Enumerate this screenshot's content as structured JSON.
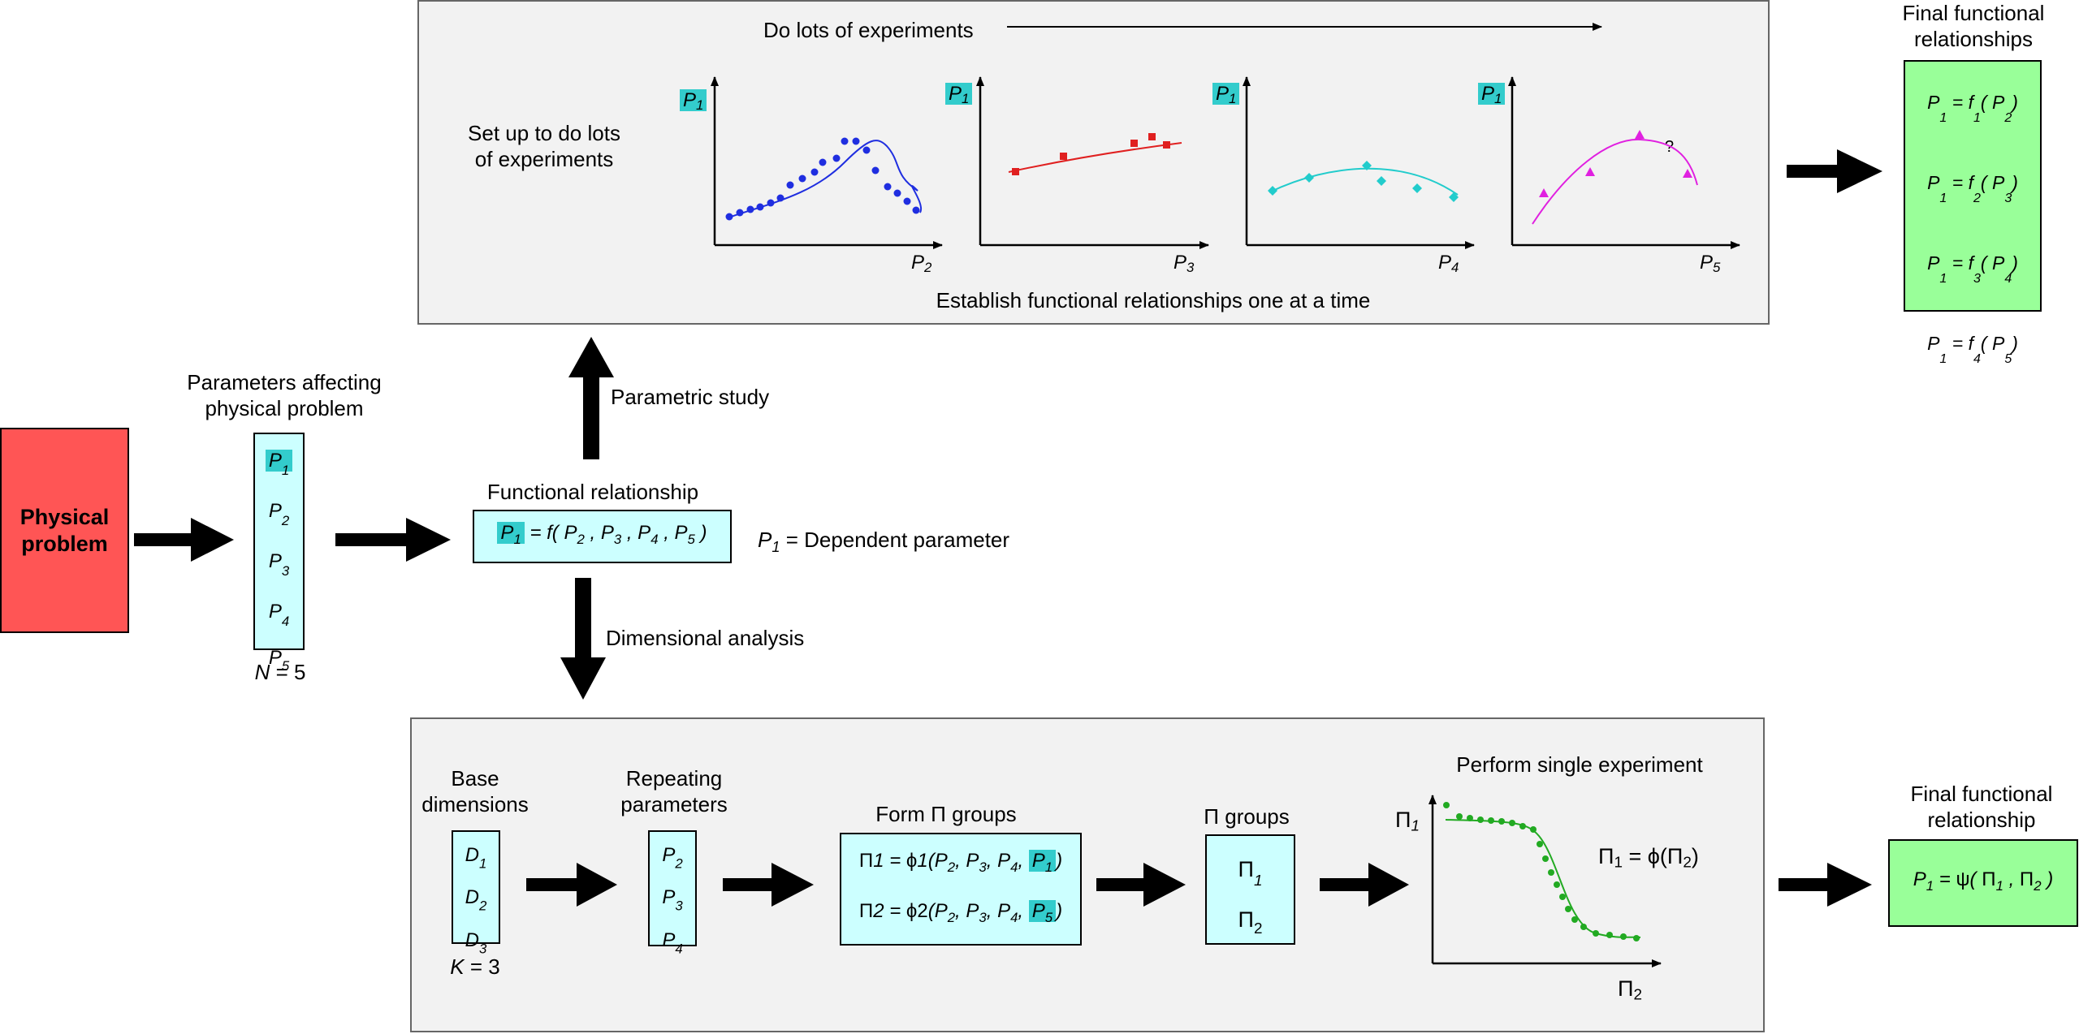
{
  "physical_problem": "Physical problem",
  "params": {
    "title": "Parameters affecting physical problem",
    "items": [
      "P1",
      "P2",
      "P3",
      "P4",
      "P5"
    ],
    "count": "N = 5"
  },
  "functional": {
    "title": "Functional relationship",
    "eq_dependent": "P1",
    "eq_rest": "= f( P2 , P3 , P4 , P5 )",
    "dependent_note": "P1 = Dependent parameter"
  },
  "arrows": {
    "parametric": "Parametric study",
    "dimensional": "Dimensional analysis"
  },
  "top_panel": {
    "header": "Do lots of experiments",
    "setup": "Set up to do lots of experiments",
    "footer": "Establish functional relationships one at a time",
    "plots": [
      {
        "ylabel": "P1",
        "xlabel": "P2",
        "color": "#1f2ee0"
      },
      {
        "ylabel": "P1",
        "xlabel": "P3",
        "color": "#e02020"
      },
      {
        "ylabel": "P1",
        "xlabel": "P4",
        "color": "#22cccc"
      },
      {
        "ylabel": "P1",
        "xlabel": "P5",
        "color": "#e020e0",
        "annotation": "?"
      }
    ]
  },
  "final_top": {
    "title": "Final functional relationships",
    "items": [
      "P1 = f1( P2 )",
      "P1 = f2( P3 )",
      "P1 = f3( P4 )",
      "P1 = f4( P5 )"
    ]
  },
  "bottom_panel": {
    "base": {
      "title": "Base dimensions",
      "items": [
        "D1",
        "D2",
        "D3"
      ],
      "count": "K = 3"
    },
    "repeating": {
      "title": "Repeating parameters",
      "items": [
        "P2",
        "P3",
        "P4"
      ]
    },
    "form": {
      "title": "Form Π groups",
      "eq1": "Π1 = ϕ1(P2, P3, P4, P1)",
      "eq2": "Π2 = ϕ2(P2, P3, P4, P5)"
    },
    "groups": {
      "title": "Π groups",
      "items": [
        "Π1",
        "Π2"
      ]
    },
    "experiment": {
      "title": "Perform single experiment",
      "ylabel": "Π1",
      "xlabel": "Π2",
      "relation": "Π1 = ϕ(Π2)",
      "color": "#22aa22"
    }
  },
  "final_bottom": {
    "title": "Final functional relationship",
    "eq": "P1 = ψ( Π1 , Π2 )"
  }
}
